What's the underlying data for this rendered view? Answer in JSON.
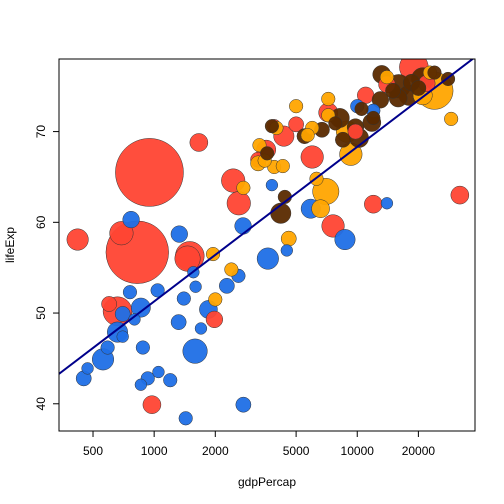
{
  "chart_data": {
    "type": "scatter",
    "xlabel": "gdpPercap",
    "ylabel": "lifeExp",
    "x_scale": "log",
    "xlim": [
      340,
      38000
    ],
    "ylim": [
      37,
      78
    ],
    "x_ticks": [
      500,
      1000,
      2000,
      5000,
      10000,
      20000
    ],
    "y_ticks": [
      40,
      50,
      60,
      70
    ],
    "grid": false,
    "legend": "none",
    "colors": {
      "Africa": "#1f6fe6",
      "Americas": "#ffa500",
      "Asia": "#ff4433",
      "Europe": "#5a2a00",
      "trend": "#00008b"
    },
    "trend_line": {
      "x": [
        340,
        38000
      ],
      "y": [
        43.3,
        78.2
      ]
    },
    "points": [
      {
        "x": 948,
        "y": 65.5,
        "size": 1.0,
        "group": "Asia"
      },
      {
        "x": 826,
        "y": 56.7,
        "size": 0.85,
        "group": "Asia"
      },
      {
        "x": 1498,
        "y": 56.3,
        "size": 0.18,
        "group": "Asia"
      },
      {
        "x": 660,
        "y": 50.2,
        "size": 0.18,
        "group": "Asia"
      },
      {
        "x": 690,
        "y": 58.8,
        "size": 0.12,
        "group": "Asia"
      },
      {
        "x": 420,
        "y": 58.1,
        "size": 0.1,
        "group": "Asia"
      },
      {
        "x": 1460,
        "y": 56.0,
        "size": 0.14,
        "group": "Asia"
      },
      {
        "x": 2450,
        "y": 64.6,
        "size": 0.12,
        "group": "Asia"
      },
      {
        "x": 2610,
        "y": 62.1,
        "size": 0.12,
        "group": "Asia"
      },
      {
        "x": 6000,
        "y": 67.2,
        "size": 0.11,
        "group": "Asia"
      },
      {
        "x": 7600,
        "y": 59.6,
        "size": 0.11,
        "group": "Asia"
      },
      {
        "x": 19000,
        "y": 77.1,
        "size": 0.18,
        "group": "Asia"
      },
      {
        "x": 3560,
        "y": 68.0,
        "size": 0.08,
        "group": "Asia"
      },
      {
        "x": 4350,
        "y": 69.5,
        "size": 0.09,
        "group": "Asia"
      },
      {
        "x": 1660,
        "y": 68.8,
        "size": 0.07,
        "group": "Asia"
      },
      {
        "x": 12000,
        "y": 62.0,
        "size": 0.07,
        "group": "Asia"
      },
      {
        "x": 32000,
        "y": 63.0,
        "size": 0.07,
        "group": "Asia"
      },
      {
        "x": 975,
        "y": 39.9,
        "size": 0.07,
        "group": "Asia"
      },
      {
        "x": 1980,
        "y": 49.3,
        "size": 0.06,
        "group": "Asia"
      },
      {
        "x": 600,
        "y": 51.0,
        "size": 0.05,
        "group": "Asia"
      },
      {
        "x": 3250,
        "y": 66.9,
        "size": 0.05,
        "group": "Asia"
      },
      {
        "x": 7200,
        "y": 72.1,
        "size": 0.08,
        "group": "Asia"
      },
      {
        "x": 11000,
        "y": 74.0,
        "size": 0.06,
        "group": "Asia"
      },
      {
        "x": 14000,
        "y": 75.2,
        "size": 0.06,
        "group": "Asia"
      },
      {
        "x": 3900,
        "y": 70.6,
        "size": 0.04,
        "group": "Asia"
      },
      {
        "x": 22000,
        "y": 75.3,
        "size": 0.06,
        "group": "Asia"
      },
      {
        "x": 5000,
        "y": 70.8,
        "size": 0.05,
        "group": "Asia"
      },
      {
        "x": 9800,
        "y": 70.0,
        "size": 0.05,
        "group": "Asia"
      },
      {
        "x": 1590,
        "y": 45.8,
        "size": 0.13,
        "group": "Africa"
      },
      {
        "x": 560,
        "y": 44.9,
        "size": 0.1,
        "group": "Africa"
      },
      {
        "x": 3630,
        "y": 56.0,
        "size": 0.1,
        "group": "Africa"
      },
      {
        "x": 8700,
        "y": 58.1,
        "size": 0.09,
        "group": "Africa"
      },
      {
        "x": 660,
        "y": 47.9,
        "size": 0.09,
        "group": "Africa"
      },
      {
        "x": 5900,
        "y": 61.5,
        "size": 0.08,
        "group": "Africa"
      },
      {
        "x": 860,
        "y": 50.6,
        "size": 0.08,
        "group": "Africa"
      },
      {
        "x": 1850,
        "y": 50.4,
        "size": 0.07,
        "group": "Africa"
      },
      {
        "x": 1330,
        "y": 58.7,
        "size": 0.06,
        "group": "Africa"
      },
      {
        "x": 770,
        "y": 60.3,
        "size": 0.06,
        "group": "Africa"
      },
      {
        "x": 2740,
        "y": 59.6,
        "size": 0.06,
        "group": "Africa"
      },
      {
        "x": 450,
        "y": 42.8,
        "size": 0.05,
        "group": "Africa"
      },
      {
        "x": 700,
        "y": 49.9,
        "size": 0.05,
        "group": "Africa"
      },
      {
        "x": 1320,
        "y": 49.0,
        "size": 0.05,
        "group": "Africa"
      },
      {
        "x": 2280,
        "y": 53.0,
        "size": 0.05,
        "group": "Africa"
      },
      {
        "x": 2750,
        "y": 39.9,
        "size": 0.05,
        "group": "Africa"
      },
      {
        "x": 930,
        "y": 42.8,
        "size": 0.04,
        "group": "Africa"
      },
      {
        "x": 1200,
        "y": 42.6,
        "size": 0.04,
        "group": "Africa"
      },
      {
        "x": 590,
        "y": 46.2,
        "size": 0.04,
        "group": "Africa"
      },
      {
        "x": 1430,
        "y": 38.4,
        "size": 0.04,
        "group": "Africa"
      },
      {
        "x": 1040,
        "y": 52.5,
        "size": 0.04,
        "group": "Africa"
      },
      {
        "x": 760,
        "y": 52.3,
        "size": 0.04,
        "group": "Africa"
      },
      {
        "x": 2600,
        "y": 54.1,
        "size": 0.04,
        "group": "Africa"
      },
      {
        "x": 12000,
        "y": 72.3,
        "size": 0.04,
        "group": "Africa"
      },
      {
        "x": 10000,
        "y": 72.8,
        "size": 0.04,
        "group": "Africa"
      },
      {
        "x": 1400,
        "y": 51.6,
        "size": 0.04,
        "group": "Africa"
      },
      {
        "x": 880,
        "y": 46.2,
        "size": 0.04,
        "group": "Africa"
      },
      {
        "x": 470,
        "y": 43.9,
        "size": 0.03,
        "group": "Africa"
      },
      {
        "x": 1600,
        "y": 52.9,
        "size": 0.03,
        "group": "Africa"
      },
      {
        "x": 1560,
        "y": 54.5,
        "size": 0.03,
        "group": "Africa"
      },
      {
        "x": 800,
        "y": 49.3,
        "size": 0.03,
        "group": "Africa"
      },
      {
        "x": 700,
        "y": 47.4,
        "size": 0.03,
        "group": "Africa"
      },
      {
        "x": 1050,
        "y": 43.5,
        "size": 0.03,
        "group": "Africa"
      },
      {
        "x": 3800,
        "y": 64.1,
        "size": 0.03,
        "group": "Africa"
      },
      {
        "x": 4500,
        "y": 56.9,
        "size": 0.03,
        "group": "Africa"
      },
      {
        "x": 860,
        "y": 42.1,
        "size": 0.03,
        "group": "Africa"
      },
      {
        "x": 1700,
        "y": 48.3,
        "size": 0.03,
        "group": "Africa"
      },
      {
        "x": 14000,
        "y": 62.1,
        "size": 0.03,
        "group": "Africa"
      },
      {
        "x": 24000,
        "y": 74.5,
        "size": 0.3,
        "group": "Americas"
      },
      {
        "x": 7000,
        "y": 63.4,
        "size": 0.15,
        "group": "Americas"
      },
      {
        "x": 9300,
        "y": 67.5,
        "size": 0.11,
        "group": "Americas"
      },
      {
        "x": 8900,
        "y": 70.0,
        "size": 0.1,
        "group": "Americas"
      },
      {
        "x": 21000,
        "y": 74.0,
        "size": 0.08,
        "group": "Americas"
      },
      {
        "x": 6600,
        "y": 61.5,
        "size": 0.07,
        "group": "Americas"
      },
      {
        "x": 4600,
        "y": 58.2,
        "size": 0.05,
        "group": "Americas"
      },
      {
        "x": 3250,
        "y": 66.5,
        "size": 0.05,
        "group": "Americas"
      },
      {
        "x": 7200,
        "y": 73.6,
        "size": 0.04,
        "group": "Americas"
      },
      {
        "x": 5000,
        "y": 72.8,
        "size": 0.04,
        "group": "Americas"
      },
      {
        "x": 3900,
        "y": 66.1,
        "size": 0.04,
        "group": "Americas"
      },
      {
        "x": 2750,
        "y": 63.8,
        "size": 0.04,
        "group": "Americas"
      },
      {
        "x": 2000,
        "y": 51.5,
        "size": 0.04,
        "group": "Americas"
      },
      {
        "x": 3500,
        "y": 66.8,
        "size": 0.04,
        "group": "Americas"
      },
      {
        "x": 6000,
        "y": 70.4,
        "size": 0.04,
        "group": "Americas"
      },
      {
        "x": 5700,
        "y": 69.6,
        "size": 0.04,
        "group": "Americas"
      },
      {
        "x": 6300,
        "y": 64.8,
        "size": 0.04,
        "group": "Americas"
      },
      {
        "x": 4300,
        "y": 66.2,
        "size": 0.04,
        "group": "Americas"
      },
      {
        "x": 3300,
        "y": 68.5,
        "size": 0.04,
        "group": "Americas"
      },
      {
        "x": 2400,
        "y": 54.8,
        "size": 0.04,
        "group": "Americas"
      },
      {
        "x": 1950,
        "y": 56.5,
        "size": 0.04,
        "group": "Americas"
      },
      {
        "x": 22800,
        "y": 76.5,
        "size": 0.04,
        "group": "Americas"
      },
      {
        "x": 14000,
        "y": 76.0,
        "size": 0.04,
        "group": "Americas"
      },
      {
        "x": 7200,
        "y": 71.8,
        "size": 0.04,
        "group": "Americas"
      },
      {
        "x": 4000,
        "y": 70.4,
        "size": 0.04,
        "group": "Americas"
      },
      {
        "x": 29000,
        "y": 71.4,
        "size": 0.04,
        "group": "Americas"
      },
      {
        "x": 16000,
        "y": 75.0,
        "size": 0.12,
        "group": "Europe"
      },
      {
        "x": 21000,
        "y": 75.8,
        "size": 0.11,
        "group": "Europe"
      },
      {
        "x": 18000,
        "y": 74.0,
        "size": 0.09,
        "group": "Europe"
      },
      {
        "x": 13200,
        "y": 76.3,
        "size": 0.07,
        "group": "Europe"
      },
      {
        "x": 10200,
        "y": 69.3,
        "size": 0.08,
        "group": "Europe"
      },
      {
        "x": 4200,
        "y": 61.0,
        "size": 0.09,
        "group": "Europe"
      },
      {
        "x": 8200,
        "y": 71.5,
        "size": 0.08,
        "group": "Europe"
      },
      {
        "x": 15900,
        "y": 73.7,
        "size": 0.07,
        "group": "Europe"
      },
      {
        "x": 11800,
        "y": 71.0,
        "size": 0.07,
        "group": "Europe"
      },
      {
        "x": 13000,
        "y": 73.5,
        "size": 0.06,
        "group": "Europe"
      },
      {
        "x": 18500,
        "y": 75.4,
        "size": 0.06,
        "group": "Europe"
      },
      {
        "x": 9800,
        "y": 70.5,
        "size": 0.06,
        "group": "Europe"
      },
      {
        "x": 8500,
        "y": 69.1,
        "size": 0.05,
        "group": "Europe"
      },
      {
        "x": 6700,
        "y": 70.2,
        "size": 0.05,
        "group": "Europe"
      },
      {
        "x": 5500,
        "y": 69.5,
        "size": 0.05,
        "group": "Europe"
      },
      {
        "x": 3600,
        "y": 67.6,
        "size": 0.04,
        "group": "Europe"
      },
      {
        "x": 10500,
        "y": 72.5,
        "size": 0.04,
        "group": "Europe"
      },
      {
        "x": 20000,
        "y": 74.8,
        "size": 0.05,
        "group": "Europe"
      },
      {
        "x": 15000,
        "y": 74.5,
        "size": 0.05,
        "group": "Europe"
      },
      {
        "x": 3800,
        "y": 70.6,
        "size": 0.04,
        "group": "Europe"
      },
      {
        "x": 7800,
        "y": 70.9,
        "size": 0.04,
        "group": "Europe"
      },
      {
        "x": 12000,
        "y": 71.5,
        "size": 0.04,
        "group": "Europe"
      },
      {
        "x": 24000,
        "y": 76.5,
        "size": 0.04,
        "group": "Europe"
      },
      {
        "x": 28000,
        "y": 75.8,
        "size": 0.04,
        "group": "Europe"
      },
      {
        "x": 4400,
        "y": 62.8,
        "size": 0.04,
        "group": "Europe"
      }
    ]
  }
}
